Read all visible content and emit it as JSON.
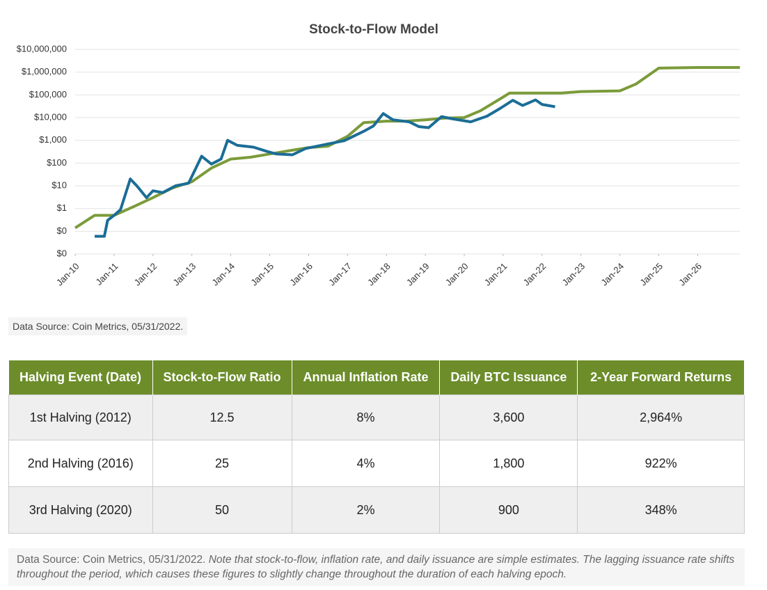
{
  "chart_data": {
    "type": "line",
    "title": "Stock-to-Flow Model",
    "log_scale": true,
    "grid": true,
    "xlim": [
      "2010-01",
      "2027-02"
    ],
    "xticks": [
      {
        "value": "2010-01",
        "label": "Jan-10"
      },
      {
        "value": "2011-01",
        "label": "Jan-11"
      },
      {
        "value": "2012-01",
        "label": "Jan-12"
      },
      {
        "value": "2013-01",
        "label": "Jan-13"
      },
      {
        "value": "2014-01",
        "label": "Jan-14"
      },
      {
        "value": "2015-01",
        "label": "Jan-15"
      },
      {
        "value": "2016-01",
        "label": "Jan-16"
      },
      {
        "value": "2017-01",
        "label": "Jan-17"
      },
      {
        "value": "2018-01",
        "label": "Jan-18"
      },
      {
        "value": "2019-01",
        "label": "Jan-19"
      },
      {
        "value": "2020-01",
        "label": "Jan-20"
      },
      {
        "value": "2021-01",
        "label": "Jan-21"
      },
      {
        "value": "2022-01",
        "label": "Jan-22"
      },
      {
        "value": "2023-01",
        "label": "Jan-23"
      },
      {
        "value": "2024-01",
        "label": "Jan-24"
      },
      {
        "value": "2025-01",
        "label": "Jan-25"
      },
      {
        "value": "2026-01",
        "label": "Jan-26"
      }
    ],
    "ylim": [
      0.01,
      10000000
    ],
    "yticks": [
      {
        "value": 0.01,
        "label": "$0"
      },
      {
        "value": 0.1,
        "label": "$0"
      },
      {
        "value": 1,
        "label": "$1"
      },
      {
        "value": 10,
        "label": "$10"
      },
      {
        "value": 100,
        "label": "$100"
      },
      {
        "value": 1000,
        "label": "$1,000"
      },
      {
        "value": 10000,
        "label": "$10,000"
      },
      {
        "value": 100000,
        "label": "$100,000"
      },
      {
        "value": 1000000,
        "label": "$1,000,000"
      },
      {
        "value": 10000000,
        "label": "$10,000,000"
      }
    ],
    "series": [
      {
        "color": "#7b9b3a",
        "x": [
          "2010-01",
          "2010-07",
          "2011-01",
          "2011-07",
          "2012-01",
          "2012-07",
          "2013-01",
          "2013-07",
          "2014-01",
          "2014-07",
          "2015-01",
          "2015-07",
          "2016-01",
          "2016-07",
          "2017-01",
          "2017-06",
          "2018-01",
          "2018-07",
          "2019-01",
          "2019-07",
          "2020-01",
          "2020-06",
          "2021-01",
          "2021-03",
          "2022-01",
          "2022-07",
          "2023-01",
          "2024-01",
          "2024-06",
          "2025-01",
          "2026-01",
          "2027-02"
        ],
        "values": [
          0.14,
          0.5,
          0.5,
          1.2,
          3,
          8,
          15,
          60,
          150,
          180,
          250,
          350,
          480,
          550,
          1500,
          6000,
          7000,
          7000,
          8000,
          9500,
          10000,
          20000,
          80000,
          120000,
          120000,
          120000,
          140000,
          150000,
          300000,
          1500000,
          1600000,
          1600000
        ]
      },
      {
        "color": "#1b6d96",
        "x": [
          "2010-07",
          "2010-10",
          "2010-11",
          "2011-01",
          "2011-03",
          "2011-06",
          "2011-08",
          "2011-11",
          "2012-01",
          "2012-04",
          "2012-08",
          "2012-12",
          "2013-04",
          "2013-07",
          "2013-10",
          "2013-12",
          "2014-03",
          "2014-08",
          "2014-12",
          "2015-03",
          "2015-08",
          "2015-12",
          "2016-06",
          "2016-12",
          "2017-06",
          "2017-09",
          "2017-12",
          "2018-03",
          "2018-08",
          "2018-11",
          "2019-02",
          "2019-06",
          "2019-09",
          "2020-03",
          "2020-08",
          "2020-12",
          "2021-04",
          "2021-07",
          "2021-11",
          "2022-01",
          "2022-05"
        ],
        "values": [
          0.06,
          0.06,
          0.3,
          0.5,
          0.9,
          20,
          10,
          3,
          6,
          5,
          10,
          13,
          200,
          90,
          150,
          1000,
          600,
          500,
          330,
          250,
          230,
          430,
          650,
          960,
          2500,
          4300,
          15000,
          8000,
          6500,
          4000,
          3600,
          11000,
          9000,
          6500,
          11500,
          25000,
          58000,
          34000,
          60000,
          38000,
          30000
        ]
      }
    ],
    "source": "Data Source: Coin Metrics, 05/31/2022."
  },
  "table": {
    "header": [
      "Halving Event (Date)",
      "Stock-to-Flow Ratio",
      "Annual Inflation Rate",
      "Daily BTC Issuance",
      "2-Year Forward Returns"
    ],
    "rows": [
      [
        "1st Halving (2012)",
        "12.5",
        "8%",
        "3,600",
        "2,964%"
      ],
      [
        "2nd Halving (2016)",
        "25",
        "4%",
        "1,800",
        "922%"
      ],
      [
        "3rd Halving (2020)",
        "50",
        "2%",
        "900",
        "348%"
      ]
    ]
  },
  "footnote": {
    "source": "Data Source: Coin Metrics, 05/31/2022.",
    "note": "Note that stock-to-flow, inflation rate, and daily issuance are simple estimates. The lagging issuance rate shifts throughout the period, which causes these figures to slightly change throughout the duration of each halving epoch."
  }
}
